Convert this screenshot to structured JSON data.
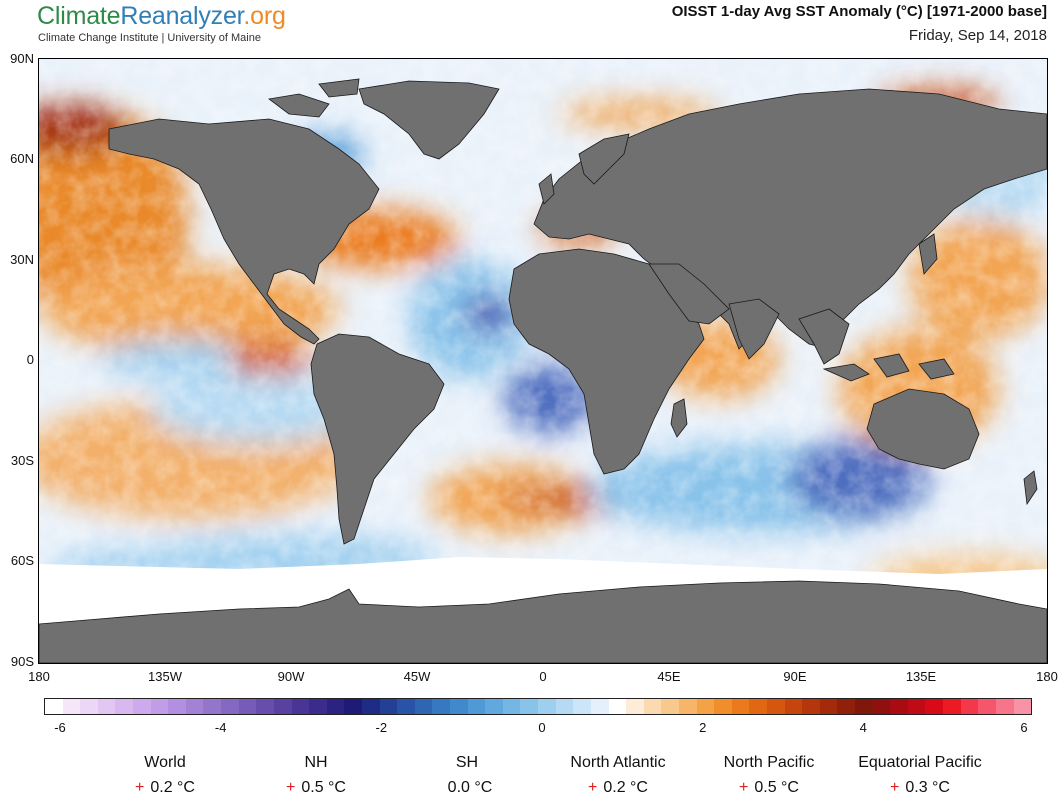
{
  "header": {
    "logo_part1": "Climate",
    "logo_part2": "Reanalyzer",
    "logo_part3": ".org",
    "institution": "Climate Change Institute | University of Maine",
    "title": "OISST 1-day Avg SST Anomaly (°C) [1971-2000 base]",
    "date": "Friday, Sep 14, 2018"
  },
  "map": {
    "lat_labels": [
      "90N",
      "60N",
      "30N",
      "0",
      "30S",
      "60S",
      "90S"
    ],
    "lon_labels": [
      "180",
      "135W",
      "90W",
      "45W",
      "0",
      "45E",
      "90E",
      "135E",
      "180"
    ],
    "land_color": "#707070",
    "ice_color": "#ffffff"
  },
  "colorbar": {
    "labels": [
      "-6",
      "-4",
      "-2",
      "0",
      "2",
      "4",
      "6"
    ],
    "colors": [
      "#ffffff",
      "#f5e6fa",
      "#ecd7f7",
      "#e3c7f3",
      "#d9b8f0",
      "#cdaaed",
      "#c19de8",
      "#b28fe0",
      "#a382d6",
      "#9475cc",
      "#8568c2",
      "#765bb8",
      "#674ead",
      "#5941a2",
      "#4a3597",
      "#3b2b8c",
      "#2c2281",
      "#1e1a76",
      "#1f2c86",
      "#233f96",
      "#2853a6",
      "#2e66b4",
      "#3679c2",
      "#4189cd",
      "#4f99d6",
      "#60a8de",
      "#74b6e4",
      "#89c3ea",
      "#9fcfef",
      "#b6daf3",
      "#cde5f8",
      "#e4f0fb",
      "#ffffff",
      "#fdecd8",
      "#fbdab2",
      "#f9c88c",
      "#f7b667",
      "#f4a246",
      "#f08e2c",
      "#eb7a1c",
      "#e16713",
      "#d4560f",
      "#c5450d",
      "#b5360c",
      "#a32a0b",
      "#91200b",
      "#7f180b",
      "#8f100f",
      "#a80c12",
      "#c00a15",
      "#d80a18",
      "#ec1a22",
      "#f2384a",
      "#f5566b",
      "#f7748a",
      "#f792a7"
    ],
    "label_positions": [
      0,
      0.1667,
      0.3333,
      0.5,
      0.6667,
      0.8333,
      1.0
    ]
  },
  "regions": [
    {
      "name": "World",
      "sign": "+",
      "value": "0.2 °C"
    },
    {
      "name": "NH",
      "sign": "+",
      "value": "0.5 °C"
    },
    {
      "name": "SH",
      "sign": "",
      "value": "0.0 °C"
    },
    {
      "name": "North Atlantic",
      "sign": "+",
      "value": "0.2 °C"
    },
    {
      "name": "North Pacific",
      "sign": "+",
      "value": "0.5 °C"
    },
    {
      "name": "Equatorial Pacific",
      "sign": "+",
      "value": "0.3 °C"
    }
  ]
}
